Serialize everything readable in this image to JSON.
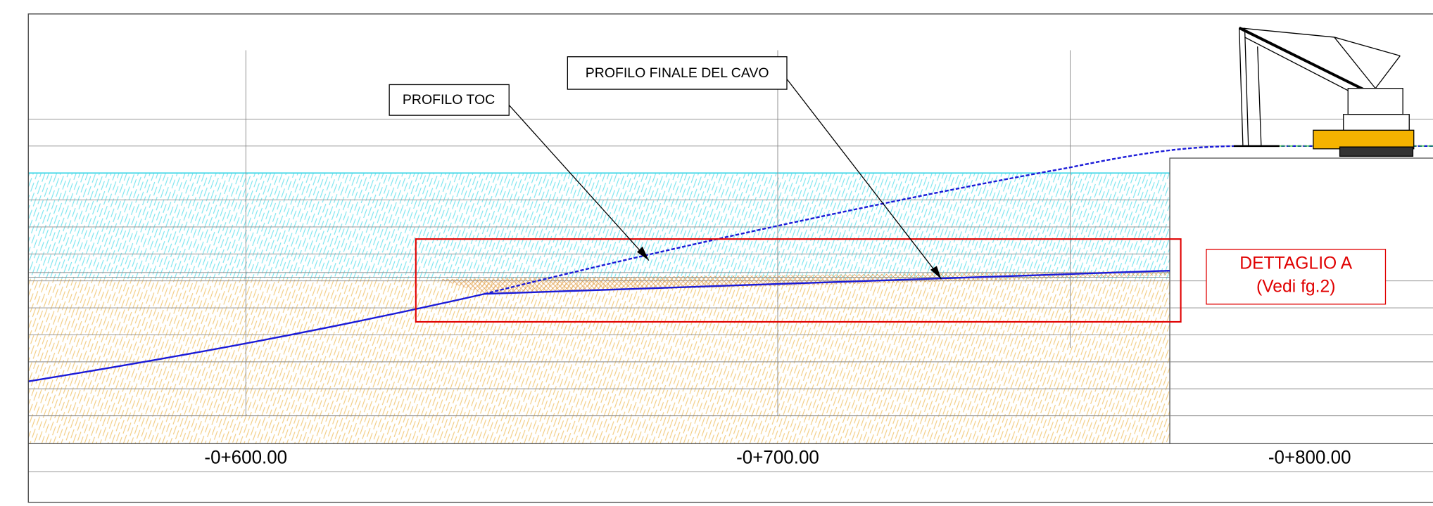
{
  "callouts": {
    "toc": "PROFILO TOC",
    "cable": "PROFILO FINALE DEL CAVO"
  },
  "detail": {
    "title": "DETTAGLIO A",
    "ref": "(Vedi fg.2)"
  },
  "stations": [
    "-0+600.00",
    "-0+700.00",
    "-0+800.00"
  ]
}
